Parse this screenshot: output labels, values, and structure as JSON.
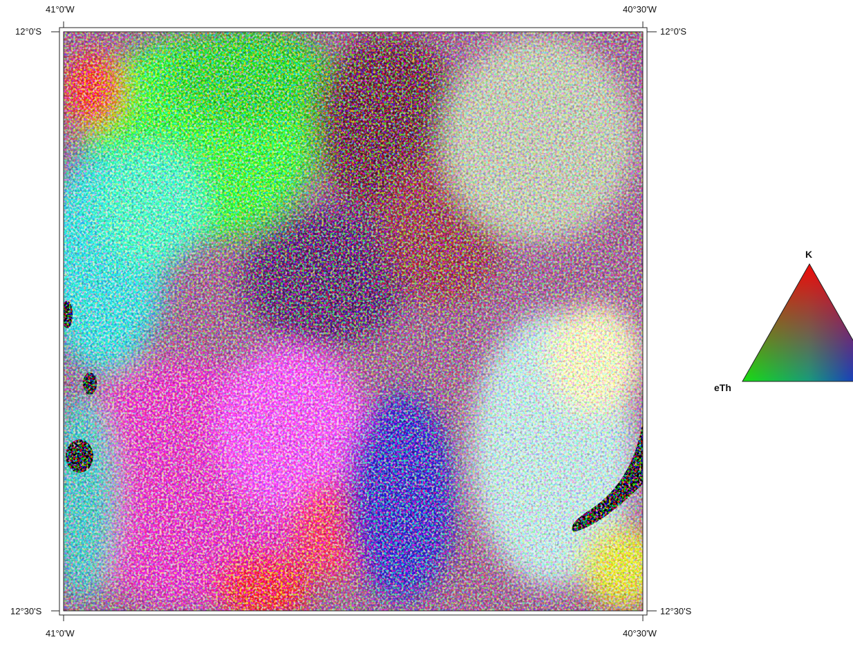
{
  "map": {
    "coordinate_labels": {
      "top_left_lon": "41°0'W",
      "top_right_lon": "40°30'W",
      "bottom_left_lon": "41°0'W",
      "bottom_right_lon": "40°30'W",
      "left_top_lat": "12°0'S",
      "left_bottom_lat": "12°30'S",
      "right_top_lat": "12°0'S",
      "right_bottom_lat": "12°30'S"
    },
    "raster": {
      "description_colors": {
        "red": "#ff1a1a",
        "green": "#1aff1a",
        "blue": "#2a1aff",
        "cyan": "#30e0e0",
        "magenta": "#ff30ff",
        "white": "#ffffff",
        "black": "#000000"
      }
    }
  },
  "legend": {
    "ternary": {
      "top_label": "K",
      "left_label": "eTh",
      "colors": {
        "top": "#ff0000",
        "left": "#00ff00",
        "right": "#0000ff"
      }
    }
  }
}
